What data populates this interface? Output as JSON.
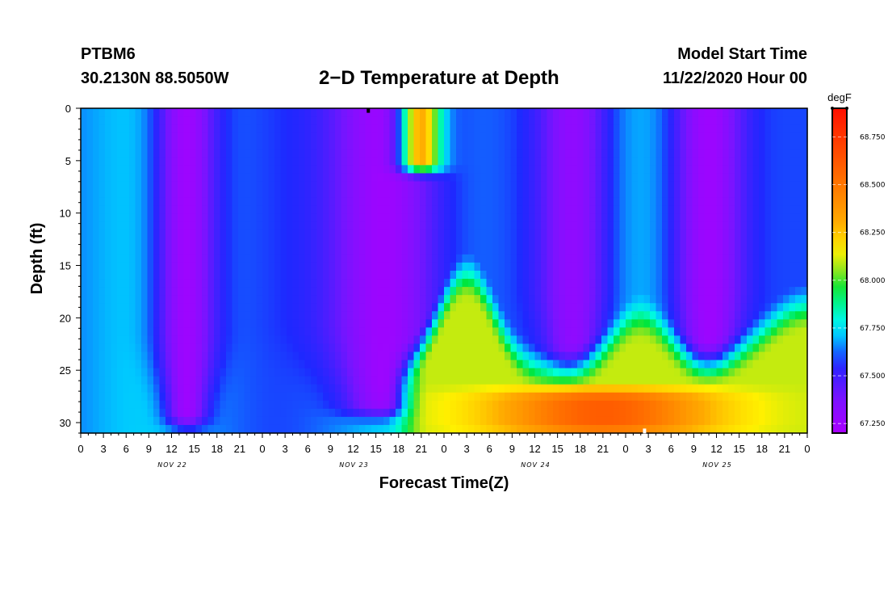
{
  "header": {
    "station_id": "PTBM6",
    "coordinates": "30.2130N 88.5050W",
    "title": "2−D Temperature at Depth",
    "model_start_label": "Model Start Time",
    "model_start_value": "11/22/2020 Hour 00"
  },
  "chart_data": {
    "type": "heatmap",
    "title": "2−D Temperature at Depth",
    "xlabel": "Forecast Time(Z)",
    "ylabel": "Depth (ft)",
    "x_range_hours": [
      0,
      96
    ],
    "ylim": [
      0,
      31
    ],
    "y_ticks": [
      0,
      5,
      10,
      15,
      20,
      25,
      30
    ],
    "x_ticks_hours": [
      0,
      3,
      6,
      9,
      12,
      15,
      18,
      21,
      24,
      27,
      30,
      33,
      36,
      39,
      42,
      45,
      48,
      51,
      54,
      57,
      60,
      63,
      66,
      69,
      72,
      75,
      78,
      81,
      84,
      87,
      90,
      93,
      96
    ],
    "x_tick_labels": [
      "0",
      "3",
      "6",
      "9",
      "12",
      "15",
      "18",
      "21",
      "0",
      "3",
      "6",
      "9",
      "12",
      "15",
      "18",
      "21",
      "0",
      "3",
      "6",
      "9",
      "12",
      "15",
      "18",
      "21",
      "0",
      "3",
      "6",
      "9",
      "12",
      "15",
      "18",
      "21",
      "0"
    ],
    "day_labels": [
      {
        "label": "NOV 22",
        "hour": 12
      },
      {
        "label": "NOV 23",
        "hour": 36
      },
      {
        "label": "NOV 24",
        "hour": 60
      },
      {
        "label": "NOV 25",
        "hour": 84
      }
    ],
    "colorbar": {
      "units": "degF",
      "min": 67.2,
      "max": 68.9,
      "ticks": [
        67.25,
        67.5,
        67.75,
        68.0,
        68.25,
        68.5,
        68.75
      ],
      "tick_labels": [
        "67.250",
        "67.500",
        "67.750",
        "68.000",
        "68.250",
        "68.500",
        "68.750"
      ]
    },
    "temperature_field": {
      "description": "cold (blue/purple) columns centered near these hours with surface cores, warm (orange/red) near-bottom layer after ~hour 42",
      "cold_columns": [
        {
          "center_hour": 14,
          "half_width_hours": 4,
          "min_temp": 67.25,
          "bottom_depth": 31
        },
        {
          "center_hour": 40,
          "half_width_hours": 8,
          "min_temp": 67.25,
          "bottom_depth": 30
        },
        {
          "center_hour": 65,
          "half_width_hours": 4.5,
          "min_temp": 67.3,
          "bottom_depth": 27
        },
        {
          "center_hour": 83,
          "half_width_hours": 5,
          "min_temp": 67.25,
          "bottom_depth": 27
        }
      ],
      "warm_patches": [
        {
          "center_hour": 45,
          "depth_top": 0,
          "depth_bottom": 6,
          "max_temp": 68.3
        },
        {
          "center_hour": 69,
          "depth_top": 28,
          "depth_bottom": 31,
          "max_temp": 68.6
        }
      ]
    },
    "markers": [
      {
        "hour": 38,
        "depth": 0.2,
        "color": "#000000"
      },
      {
        "hour": 74.5,
        "depth": 30.8,
        "color": "#ffffff"
      }
    ]
  }
}
